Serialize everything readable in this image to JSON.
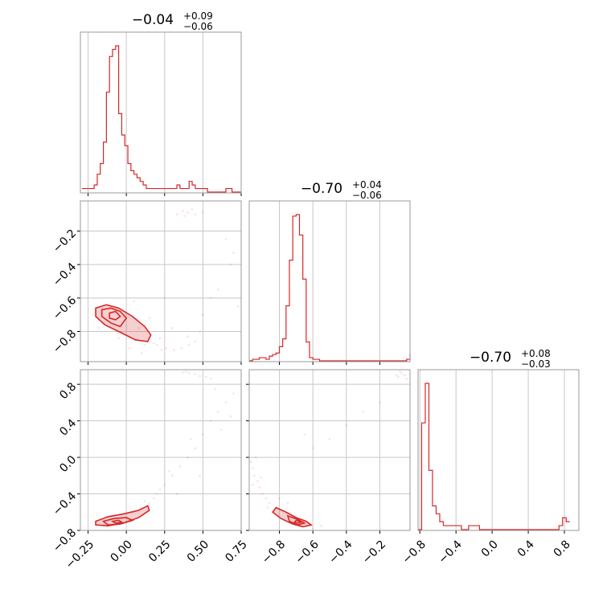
{
  "chart_data": {
    "type": "corner",
    "color": "#d62728",
    "panels": [
      {
        "id": "hist-0",
        "kind": "histogram",
        "row": 0,
        "col": 0,
        "title": {
          "main": "−0.04",
          "sup": "+0.09",
          "sub": "−0.06"
        },
        "xlim": [
          -0.3,
          0.75
        ],
        "xticks": [
          -0.25,
          0.0,
          0.25,
          0.5,
          0.75
        ],
        "bins": {
          "start": -0.29,
          "width": 0.02,
          "counts": [
            1,
            1,
            1,
            1,
            2,
            5,
            8,
            14,
            28,
            38,
            40,
            41,
            22,
            16,
            13,
            8,
            6,
            5,
            4,
            3,
            2,
            1,
            1,
            1,
            1,
            1,
            1,
            1,
            1,
            1,
            1,
            2,
            1,
            1,
            1,
            3,
            2,
            1,
            1,
            1,
            1,
            0,
            0,
            0,
            0,
            0,
            0,
            1,
            1,
            0,
            0,
            0,
            0
          ]
        }
      },
      {
        "id": "hist-1",
        "kind": "histogram",
        "row": 1,
        "col": 1,
        "title": {
          "main": "−0.70",
          "sup": "+0.04",
          "sub": "−0.06"
        },
        "xlim": [
          -0.98,
          -0.02
        ],
        "xticks": [
          -0.8,
          -0.6,
          -0.4,
          -0.2
        ],
        "bins": {
          "start": -0.98,
          "width": 0.02,
          "counts": [
            0,
            1,
            1,
            2,
            2,
            1,
            3,
            4,
            5,
            9,
            14,
            35,
            64,
            92,
            93,
            80,
            52,
            12,
            2,
            1,
            1,
            0,
            0,
            0,
            0,
            0,
            0,
            0,
            0,
            0,
            0,
            0,
            0,
            0,
            0,
            0,
            0,
            0,
            0,
            0,
            0,
            0,
            0,
            0,
            0,
            0,
            0,
            1,
            3,
            5,
            2
          ]
        }
      },
      {
        "id": "hist-2",
        "kind": "histogram",
        "row": 2,
        "col": 2,
        "title": {
          "main": "−0.70",
          "sup": "+0.08",
          "sub": "−0.03"
        },
        "xlim": [
          -0.82,
          0.96
        ],
        "xticks": [
          -0.8,
          -0.4,
          0.0,
          0.4,
          0.8
        ],
        "bins": {
          "start": -0.82,
          "width": 0.04,
          "counts": [
            0,
            27,
            37,
            15,
            6,
            4,
            2,
            1,
            1,
            1,
            1,
            1,
            0,
            0,
            1,
            1,
            1,
            0,
            0,
            0,
            0,
            0,
            0,
            0,
            0,
            0,
            0,
            0,
            0,
            0,
            0,
            0,
            0,
            0,
            0,
            0,
            0,
            0,
            0,
            1,
            3,
            2
          ]
        }
      },
      {
        "id": "scatter-1-0",
        "kind": "hist2d",
        "row": 1,
        "col": 0,
        "xlim": [
          -0.3,
          0.75
        ],
        "ylim": [
          -0.98,
          -0.02
        ],
        "yticks": [
          -0.2,
          -0.4,
          -0.6,
          -0.8
        ],
        "contours": [
          [
            [
              -0.2,
              -0.66
            ],
            [
              -0.13,
              -0.64
            ],
            [
              -0.05,
              -0.66
            ],
            [
              0.04,
              -0.71
            ],
            [
              0.12,
              -0.77
            ],
            [
              0.16,
              -0.82
            ],
            [
              0.14,
              -0.86
            ],
            [
              0.06,
              -0.85
            ],
            [
              -0.05,
              -0.8
            ],
            [
              -0.14,
              -0.76
            ],
            [
              -0.2,
              -0.71
            ]
          ],
          [
            [
              -0.16,
              -0.67
            ],
            [
              -0.1,
              -0.66
            ],
            [
              -0.04,
              -0.68
            ],
            [
              0.0,
              -0.72
            ],
            [
              -0.04,
              -0.77
            ],
            [
              -0.1,
              -0.75
            ],
            [
              -0.16,
              -0.71
            ]
          ],
          [
            [
              -0.11,
              -0.69
            ],
            [
              -0.07,
              -0.68
            ],
            [
              -0.04,
              -0.71
            ],
            [
              -0.07,
              -0.73
            ],
            [
              -0.11,
              -0.72
            ]
          ]
        ],
        "points": [
          [
            0.37,
            -0.08
          ],
          [
            0.4,
            -0.09
          ],
          [
            0.43,
            -0.07
          ],
          [
            0.45,
            -0.1
          ],
          [
            0.38,
            -0.11
          ],
          [
            0.5,
            -0.09
          ],
          [
            0.33,
            -0.1
          ],
          [
            0.2,
            -0.88
          ],
          [
            0.26,
            -0.9
          ],
          [
            0.31,
            -0.91
          ],
          [
            0.36,
            -0.9
          ],
          [
            0.41,
            -0.88
          ],
          [
            0.45,
            -0.86
          ],
          [
            0.18,
            -0.87
          ],
          [
            0.23,
            -0.91
          ],
          [
            0.1,
            -0.93
          ],
          [
            0.6,
            -0.55
          ],
          [
            0.68,
            -0.4
          ],
          [
            0.7,
            -0.33
          ],
          [
            0.55,
            -0.6
          ],
          [
            0.73,
            -0.65
          ],
          [
            0.5,
            -0.7
          ],
          [
            0.3,
            -0.78
          ],
          [
            0.08,
            -0.78
          ],
          [
            0.12,
            -0.88
          ],
          [
            -0.22,
            -0.7
          ],
          [
            -0.18,
            -0.78
          ],
          [
            0.02,
            -0.9
          ],
          [
            0.25,
            -0.6
          ],
          [
            0.15,
            -0.72
          ],
          [
            0.65,
            -0.25
          ],
          [
            0.4,
            -0.83
          ],
          [
            0.48,
            -0.8
          ],
          [
            0.05,
            -0.62
          ],
          [
            -0.05,
            -0.84
          ],
          [
            0.22,
            -0.84
          ]
        ]
      },
      {
        "id": "scatter-2-0",
        "kind": "hist2d",
        "row": 2,
        "col": 0,
        "xlim": [
          -0.3,
          0.75
        ],
        "ylim": [
          -0.8,
          0.96
        ],
        "yticks": [
          0.8,
          0.4,
          0.0,
          -0.4,
          -0.8
        ],
        "contours": [
          [
            [
              -0.2,
              -0.7
            ],
            [
              -0.12,
              -0.65
            ],
            [
              -0.02,
              -0.62
            ],
            [
              0.08,
              -0.58
            ],
            [
              0.14,
              -0.53
            ],
            [
              0.15,
              -0.58
            ],
            [
              0.08,
              -0.66
            ],
            [
              -0.02,
              -0.72
            ],
            [
              -0.12,
              -0.75
            ],
            [
              -0.2,
              -0.74
            ]
          ],
          [
            [
              -0.15,
              -0.7
            ],
            [
              -0.08,
              -0.67
            ],
            [
              0.0,
              -0.66
            ],
            [
              0.04,
              -0.69
            ],
            [
              -0.04,
              -0.73
            ],
            [
              -0.12,
              -0.74
            ]
          ],
          [
            [
              -0.09,
              -0.7
            ],
            [
              -0.05,
              -0.69
            ],
            [
              -0.03,
              -0.71
            ],
            [
              -0.07,
              -0.72
            ]
          ]
        ],
        "points": [
          [
            0.37,
            0.93
          ],
          [
            0.41,
            0.92
          ],
          [
            0.45,
            0.91
          ],
          [
            0.48,
            0.89
          ],
          [
            0.52,
            0.88
          ],
          [
            0.39,
            0.94
          ],
          [
            0.55,
            0.86
          ],
          [
            0.2,
            -0.4
          ],
          [
            0.25,
            -0.3
          ],
          [
            0.3,
            -0.2
          ],
          [
            0.35,
            -0.1
          ],
          [
            0.4,
            0.0
          ],
          [
            0.45,
            0.1
          ],
          [
            0.5,
            0.25
          ],
          [
            0.55,
            0.4
          ],
          [
            0.6,
            0.5
          ],
          [
            0.65,
            0.6
          ],
          [
            0.7,
            0.7
          ],
          [
            0.18,
            -0.45
          ],
          [
            0.22,
            -0.35
          ],
          [
            0.28,
            -0.15
          ],
          [
            0.42,
            0.2
          ],
          [
            0.62,
            0.3
          ],
          [
            0.15,
            -0.5
          ],
          [
            0.12,
            -0.48
          ],
          [
            0.05,
            -0.6
          ],
          [
            0.33,
            -0.4
          ],
          [
            0.48,
            -0.2
          ],
          [
            0.58,
            0.75
          ],
          [
            0.68,
            0.45
          ]
        ]
      },
      {
        "id": "scatter-2-1",
        "kind": "hist2d",
        "row": 2,
        "col": 1,
        "xlim": [
          -0.98,
          -0.02
        ],
        "ylim": [
          -0.8,
          0.96
        ],
        "contours": [
          [
            [
              -0.82,
              -0.55
            ],
            [
              -0.76,
              -0.6
            ],
            [
              -0.7,
              -0.66
            ],
            [
              -0.64,
              -0.7
            ],
            [
              -0.61,
              -0.74
            ],
            [
              -0.66,
              -0.76
            ],
            [
              -0.72,
              -0.73
            ],
            [
              -0.79,
              -0.67
            ],
            [
              -0.84,
              -0.6
            ]
          ],
          [
            [
              -0.75,
              -0.64
            ],
            [
              -0.69,
              -0.68
            ],
            [
              -0.65,
              -0.72
            ],
            [
              -0.69,
              -0.74
            ],
            [
              -0.74,
              -0.7
            ]
          ],
          [
            [
              -0.7,
              -0.69
            ],
            [
              -0.67,
              -0.71
            ],
            [
              -0.69,
              -0.72
            ],
            [
              -0.71,
              -0.71
            ]
          ]
        ],
        "points": [
          [
            -0.97,
            -0.05
          ],
          [
            -0.96,
            -0.12
          ],
          [
            -0.95,
            -0.2
          ],
          [
            -0.93,
            -0.26
          ],
          [
            -0.92,
            -0.33
          ],
          [
            -0.9,
            -0.4
          ],
          [
            -0.88,
            -0.45
          ],
          [
            -0.86,
            -0.5
          ],
          [
            -0.94,
            0.0
          ],
          [
            -0.96,
            -0.3
          ],
          [
            -0.91,
            -0.22
          ],
          [
            -0.05,
            0.9
          ],
          [
            -0.07,
            0.92
          ],
          [
            -0.09,
            0.88
          ],
          [
            -0.04,
            0.86
          ],
          [
            -0.08,
            0.94
          ],
          [
            -0.1,
            0.9
          ],
          [
            -0.5,
            0.2
          ],
          [
            -0.4,
            0.35
          ],
          [
            -0.3,
            0.5
          ],
          [
            -0.2,
            0.6
          ],
          [
            -0.6,
            0.1
          ],
          [
            -0.55,
            -0.75
          ],
          [
            -0.6,
            -0.78
          ],
          [
            -0.87,
            -0.55
          ],
          [
            -0.8,
            -0.45
          ],
          [
            -0.75,
            -0.5
          ],
          [
            -0.65,
            0.25
          ]
        ]
      }
    ],
    "x_axis_ticks_bottom": [
      {
        "col": 0,
        "labels": [
          "−0.25",
          "0.00",
          "0.25",
          "0.50",
          "0.75"
        ]
      },
      {
        "col": 1,
        "labels": [
          "−0.8",
          "−0.6",
          "−0.4",
          "−0.2"
        ]
      },
      {
        "col": 2,
        "labels": [
          "−0.8",
          "−0.4",
          "0.0",
          "0.4",
          "0.8"
        ]
      }
    ],
    "y_axis_ticks_left": [
      {
        "row": 1,
        "labels": [
          "−0.2",
          "−0.4",
          "−0.6",
          "−0.8"
        ]
      },
      {
        "row": 2,
        "labels": [
          "0.8",
          "0.4",
          "0.0",
          "−0.4",
          "−0.8"
        ]
      }
    ]
  }
}
